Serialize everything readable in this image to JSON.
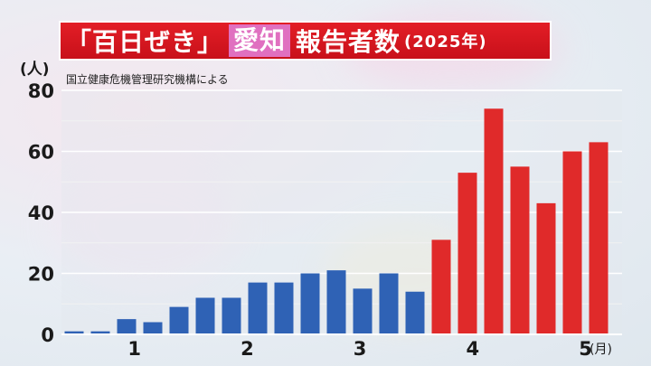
{
  "title": {
    "main": "「百日ぜき」",
    "region": "愛知",
    "rest": "報告者数",
    "year": "(2025年)"
  },
  "source_note": "国立健康危機管理研究機構による",
  "y_unit": "(人)",
  "x_unit": "(月)",
  "colors": {
    "blue": "#2f62b5",
    "red": "#e02a2a",
    "title_bg": "#d4141c",
    "region_bg": "#e070c0"
  },
  "chart_data": {
    "type": "bar",
    "ylim": [
      0,
      80
    ],
    "yticks": [
      "0",
      "20",
      "40",
      "60",
      "80"
    ],
    "xticks": [
      {
        "label": "1",
        "bar_index": 2.3
      },
      {
        "label": "2",
        "bar_index": 6.6
      },
      {
        "label": "3",
        "bar_index": 10.9
      },
      {
        "label": "4",
        "bar_index": 15.2
      },
      {
        "label": "5",
        "bar_index": 19.5
      }
    ],
    "values": [
      1,
      1,
      5,
      4,
      9,
      12,
      12,
      17,
      17,
      20,
      21,
      15,
      20,
      14,
      31,
      53,
      74,
      55,
      43,
      60,
      63
    ],
    "red_from_index": 14,
    "grid": true
  }
}
